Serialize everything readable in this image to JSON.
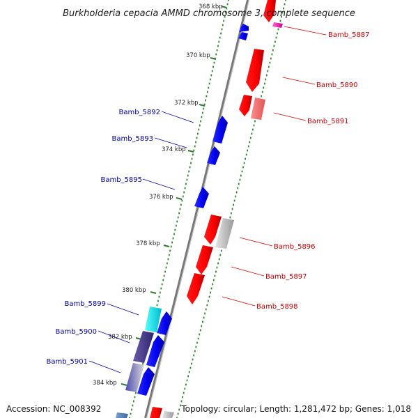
{
  "title": "Burkholderia cepacia AMMD chromosome 3, complete sequence",
  "accession_text": "Accession: NC_008392",
  "topology_text": "Topology: circular; Length: 1,281,472 bp; Genes: 1,018",
  "colors": {
    "forward_gene": "#ff0000",
    "reverse_gene": "#0000ff",
    "forward_label": "#cc0000",
    "reverse_label": "#0000aa",
    "backbone": "#888888",
    "dots": "#2a8a2a"
  },
  "ticks": [
    {
      "label": "368 kbp"
    },
    {
      "label": "370 kbp"
    },
    {
      "label": "372 kbp"
    },
    {
      "label": "374 kbp"
    },
    {
      "label": "376 kbp"
    },
    {
      "label": "378 kbp"
    },
    {
      "label": "380 kbp"
    },
    {
      "label": "382 kbp"
    },
    {
      "label": "384 kbp"
    }
  ],
  "forward_genes": [
    {
      "label": "Bamb_5887",
      "icon": "right-arrow-icon"
    },
    {
      "label": "Bamb_5890",
      "icon": "right-arrow-icon"
    },
    {
      "label": "Bamb_5891",
      "icon": "right-arrow-icon"
    },
    {
      "label": "Bamb_5896",
      "icon": "right-arrow-icon"
    },
    {
      "label": "Bamb_5897",
      "icon": "right-arrow-icon"
    },
    {
      "label": "Bamb_5898",
      "icon": "right-arrow-icon"
    }
  ],
  "reverse_genes": [
    {
      "label": "Bamb_5892",
      "icon": "left-arrow-icon"
    },
    {
      "label": "Bamb_5893",
      "icon": "left-arrow-icon"
    },
    {
      "label": "Bamb_5895",
      "icon": "left-arrow-icon"
    },
    {
      "label": "Bamb_5899",
      "icon": "left-arrow-icon"
    },
    {
      "label": "Bamb_5900",
      "icon": "left-arrow-icon"
    },
    {
      "label": "Bamb_5901",
      "icon": "left-arrow-icon"
    }
  ]
}
